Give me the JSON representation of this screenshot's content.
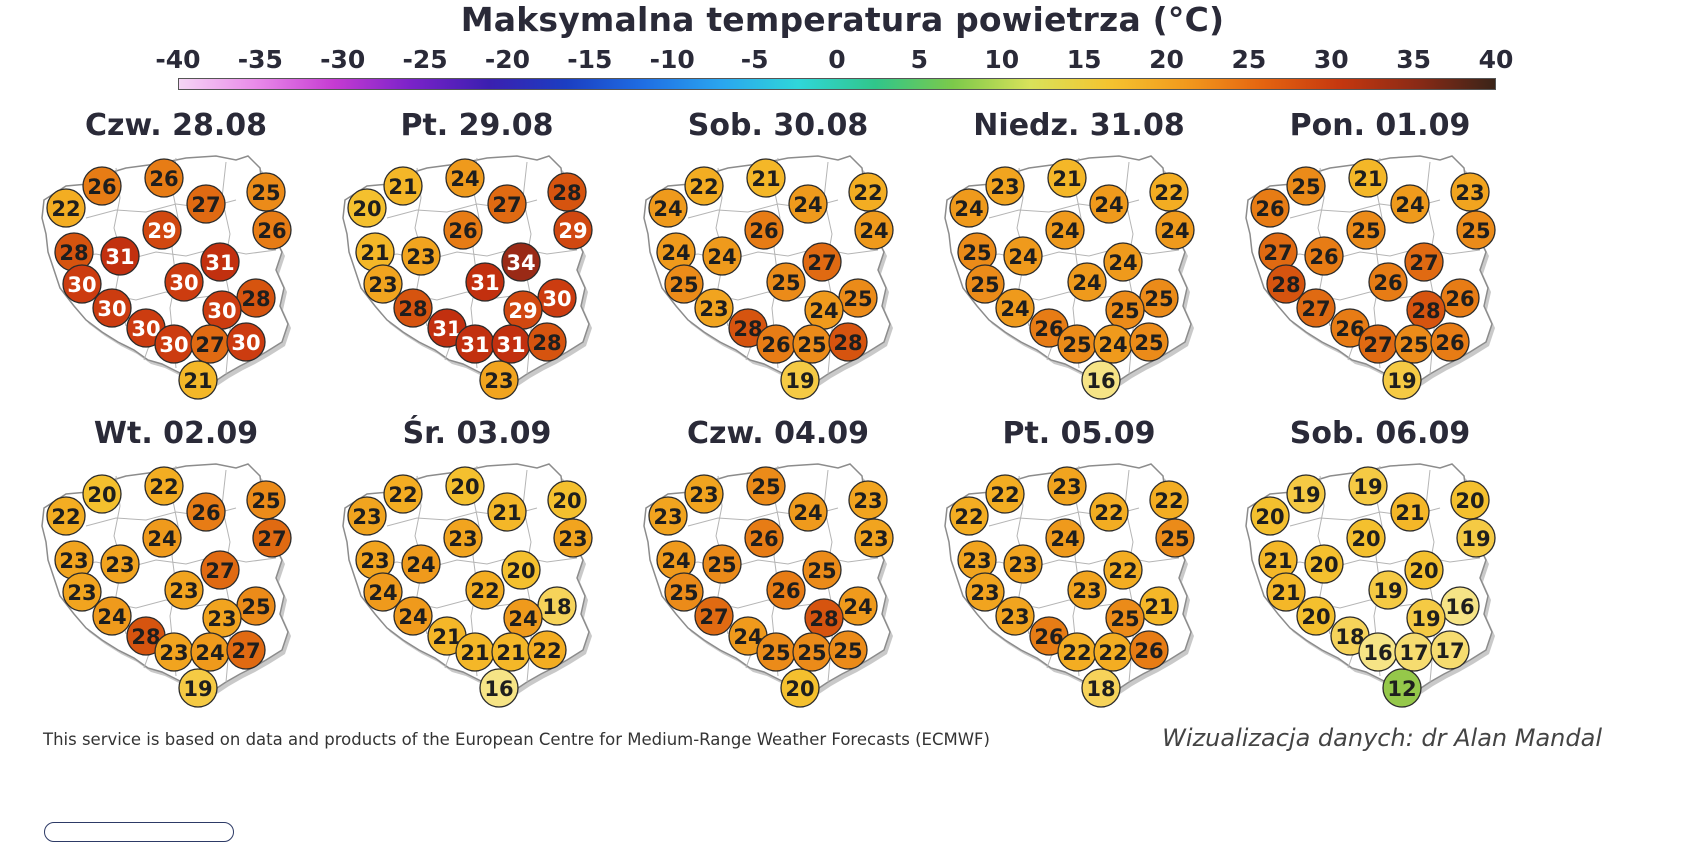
{
  "title": "Maksymalna temperatura powietrza (°C)",
  "scale": {
    "ticks": [
      "-40",
      "-35",
      "-30",
      "-25",
      "-20",
      "-15",
      "-10",
      "-5",
      "0",
      "5",
      "10",
      "15",
      "20",
      "25",
      "30",
      "35",
      "40"
    ],
    "min": -40,
    "max": 40,
    "colors": [
      "#f5d5f5",
      "#e98ae9",
      "#c53bd2",
      "#7a22c9",
      "#3b1fb0",
      "#1b3ec2",
      "#1f6ee3",
      "#2aa5ef",
      "#2fd6d9",
      "#30c68a",
      "#7cc94a",
      "#d9e25a",
      "#f4c430",
      "#f29a1d",
      "#e46410",
      "#c5370f",
      "#8a2a16",
      "#3a2418"
    ]
  },
  "days": [
    {
      "label": "Czw. 28.08",
      "temps": [
        22,
        26,
        26,
        27,
        25,
        26,
        28,
        31,
        29,
        31,
        30,
        30,
        30,
        28,
        30,
        30,
        30,
        27,
        30,
        21
      ]
    },
    {
      "label": "Pt. 29.08",
      "temps": [
        20,
        21,
        24,
        27,
        28,
        29,
        21,
        23,
        26,
        34,
        23,
        31,
        28,
        30,
        29,
        31,
        31,
        31,
        28,
        23
      ]
    },
    {
      "label": "Sob. 30.08",
      "temps": [
        24,
        22,
        21,
        24,
        22,
        24,
        24,
        24,
        26,
        27,
        25,
        25,
        23,
        25,
        24,
        28,
        26,
        25,
        28,
        19
      ]
    },
    {
      "label": "Niedz. 31.08",
      "temps": [
        24,
        23,
        21,
        24,
        22,
        24,
        25,
        24,
        24,
        24,
        25,
        24,
        24,
        25,
        25,
        26,
        25,
        24,
        25,
        16
      ]
    },
    {
      "label": "Pon. 01.09",
      "temps": [
        26,
        25,
        21,
        24,
        23,
        25,
        27,
        26,
        25,
        27,
        28,
        26,
        27,
        26,
        28,
        26,
        27,
        25,
        26,
        19
      ]
    },
    {
      "label": "Wt. 02.09",
      "temps": [
        22,
        20,
        22,
        26,
        25,
        27,
        23,
        23,
        24,
        27,
        23,
        23,
        24,
        25,
        23,
        28,
        23,
        24,
        27,
        19
      ]
    },
    {
      "label": "Śr. 03.09",
      "temps": [
        23,
        22,
        20,
        21,
        20,
        23,
        23,
        24,
        23,
        20,
        24,
        22,
        24,
        18,
        24,
        21,
        21,
        21,
        22,
        16
      ]
    },
    {
      "label": "Czw. 04.09",
      "temps": [
        23,
        23,
        25,
        24,
        23,
        23,
        24,
        25,
        26,
        25,
        25,
        26,
        27,
        24,
        28,
        24,
        25,
        25,
        25,
        20
      ]
    },
    {
      "label": "Pt. 05.09",
      "temps": [
        22,
        22,
        23,
        22,
        22,
        25,
        23,
        23,
        24,
        22,
        23,
        23,
        23,
        21,
        25,
        26,
        22,
        22,
        26,
        18
      ]
    },
    {
      "label": "Sob. 06.09",
      "temps": [
        20,
        19,
        19,
        21,
        20,
        19,
        21,
        20,
        20,
        20,
        21,
        19,
        20,
        16,
        19,
        18,
        16,
        17,
        17,
        12
      ]
    }
  ],
  "footer": {
    "source": "This service is based on data and products of the European Centre for Medium-Range Weather Forecasts (ECMWF)",
    "credit": "Wizualizacja danych: dr Alan Mandal"
  }
}
